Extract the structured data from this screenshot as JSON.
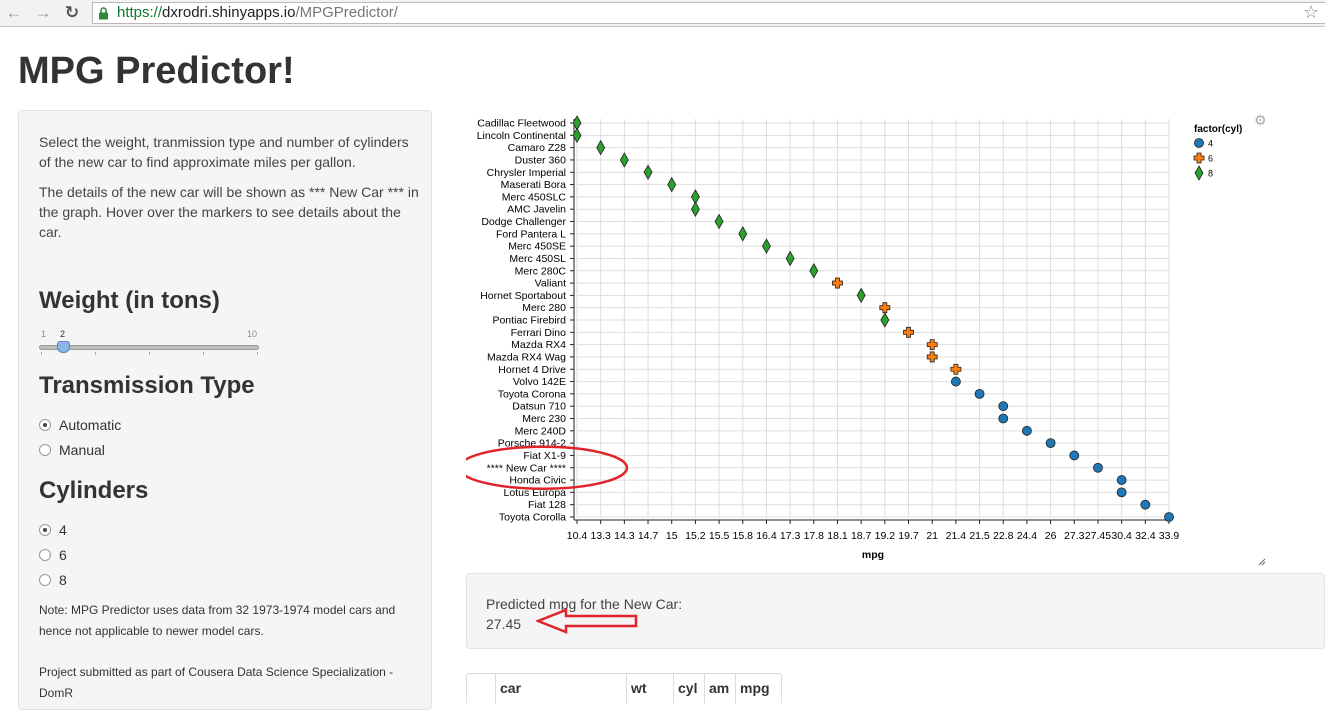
{
  "browser": {
    "url_protocol": "https://",
    "url_host": "dxrodri.shinyapps.io",
    "url_path": "/MPGPredictor/"
  },
  "page": {
    "title": "MPG Predictor!"
  },
  "sidebar": {
    "intro1": "Select the weight, tranmission type and number of cylinders of the new car to find approximate miles per gallon.",
    "intro2": "The details of the new car will be shown as *** New Car *** in the graph. Hover over the markers to see details about the car.",
    "weight_heading": "Weight (in tons)",
    "weight_slider": {
      "min_label": "1",
      "max_label": "10",
      "value_label": "2",
      "min": 1,
      "max": 10,
      "value": 2
    },
    "transmission_heading": "Transmission Type",
    "transmission_options": [
      {
        "label": "Automatic",
        "selected": true
      },
      {
        "label": "Manual",
        "selected": false
      }
    ],
    "cylinders_heading": "Cylinders",
    "cylinder_options": [
      {
        "label": "4",
        "selected": true
      },
      {
        "label": "6",
        "selected": false
      },
      {
        "label": "8",
        "selected": false
      }
    ],
    "note": "Note: MPG Predictor uses data from 32 1973-1974 model cars and hence not applicable to newer model cars.",
    "project": "Project submitted as part of Cousera Data Science Specialization - DomR"
  },
  "chart_data": {
    "type": "scatter",
    "xlabel": "mpg",
    "ylabel": "",
    "legend_title": "factor(cyl)",
    "legend_position": "top-right",
    "grid": true,
    "x_ticks": [
      "10.4",
      "13.3",
      "14.3",
      "14.7",
      "15",
      "15.2",
      "15.5",
      "15.8",
      "16.4",
      "17.3",
      "17.8",
      "18.1",
      "18.7",
      "19.2",
      "19.7",
      "21",
      "21.4",
      "21.5",
      "22.8",
      "24.4",
      "26",
      "27.3",
      "27.45",
      "30.4",
      "32.4",
      "33.9"
    ],
    "categories": [
      "Cadillac Fleetwood",
      "Lincoln Continental",
      "Camaro Z28",
      "Duster 360",
      "Chrysler Imperial",
      "Maserati Bora",
      "Merc 450SLC",
      "AMC Javelin",
      "Dodge Challenger",
      "Ford Pantera L",
      "Merc 450SE",
      "Merc 450SL",
      "Merc 280C",
      "Valiant",
      "Hornet Sportabout",
      "Merc 280",
      "Pontiac Firebird",
      "Ferrari Dino",
      "Mazda RX4",
      "Mazda RX4 Wag",
      "Hornet 4 Drive",
      "Volvo 142E",
      "Toyota Corona",
      "Datsun 710",
      "Merc 230",
      "Merc 240D",
      "Porsche 914-2",
      "Fiat X1-9",
      "**** New Car ****",
      "Honda Civic",
      "Lotus Europa",
      "Fiat 128",
      "Toyota Corolla"
    ],
    "series": [
      {
        "name": "4",
        "color": "#1f77b4",
        "marker": "circle",
        "points": [
          {
            "car": "Volvo 142E",
            "mpg": "21.4"
          },
          {
            "car": "Toyota Corona",
            "mpg": "21.5"
          },
          {
            "car": "Datsun 710",
            "mpg": "22.8"
          },
          {
            "car": "Merc 230",
            "mpg": "22.8"
          },
          {
            "car": "Merc 240D",
            "mpg": "24.4"
          },
          {
            "car": "Porsche 914-2",
            "mpg": "26"
          },
          {
            "car": "Fiat X1-9",
            "mpg": "27.3"
          },
          {
            "car": "**** New Car ****",
            "mpg": "27.45"
          },
          {
            "car": "Honda Civic",
            "mpg": "30.4"
          },
          {
            "car": "Lotus Europa",
            "mpg": "30.4"
          },
          {
            "car": "Fiat 128",
            "mpg": "32.4"
          },
          {
            "car": "Toyota Corolla",
            "mpg": "33.9"
          }
        ]
      },
      {
        "name": "6",
        "color": "#ff7f0e",
        "marker": "cross",
        "points": [
          {
            "car": "Valiant",
            "mpg": "18.1"
          },
          {
            "car": "Merc 280",
            "mpg": "19.2"
          },
          {
            "car": "Ferrari Dino",
            "mpg": "19.7"
          },
          {
            "car": "Mazda RX4",
            "mpg": "21"
          },
          {
            "car": "Mazda RX4 Wag",
            "mpg": "21"
          },
          {
            "car": "Hornet 4 Drive",
            "mpg": "21.4"
          }
        ]
      },
      {
        "name": "8",
        "color": "#2ca02c",
        "marker": "diamond",
        "points": [
          {
            "car": "Cadillac Fleetwood",
            "mpg": "10.4"
          },
          {
            "car": "Lincoln Continental",
            "mpg": "10.4"
          },
          {
            "car": "Camaro Z28",
            "mpg": "13.3"
          },
          {
            "car": "Duster 360",
            "mpg": "14.3"
          },
          {
            "car": "Chrysler Imperial",
            "mpg": "14.7"
          },
          {
            "car": "Maserati Bora",
            "mpg": "15"
          },
          {
            "car": "Merc 450SLC",
            "mpg": "15.2"
          },
          {
            "car": "AMC Javelin",
            "mpg": "15.2"
          },
          {
            "car": "Dodge Challenger",
            "mpg": "15.5"
          },
          {
            "car": "Ford Pantera L",
            "mpg": "15.8"
          },
          {
            "car": "Merc 450SE",
            "mpg": "16.4"
          },
          {
            "car": "Merc 450SL",
            "mpg": "17.3"
          },
          {
            "car": "Merc 280C",
            "mpg": "17.8"
          },
          {
            "car": "Hornet Sportabout",
            "mpg": "18.7"
          },
          {
            "car": "Pontiac Firebird",
            "mpg": "19.2"
          }
        ]
      }
    ]
  },
  "prediction": {
    "label": "Predicted mpg for the New Car:",
    "value": "27.45",
    "annotation_color": "#e0242a"
  },
  "table": {
    "columns": [
      "",
      "car",
      "wt",
      "cyl",
      "am",
      "mpg"
    ]
  }
}
